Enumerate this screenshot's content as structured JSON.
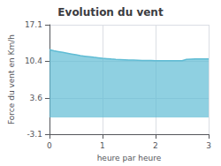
{
  "chart_data": {
    "type": "area",
    "title": "Evolution du vent",
    "xlabel": "heure par heure",
    "ylabel": "Force du vent en Km/h",
    "x": [
      0,
      0.083,
      0.167,
      0.25,
      0.333,
      0.417,
      0.5,
      0.583,
      0.667,
      0.75,
      0.833,
      0.917,
      1.0,
      1.083,
      1.167,
      1.25,
      1.333,
      1.417,
      1.5,
      1.583,
      1.667,
      1.75,
      1.833,
      1.917,
      2.0,
      2.083,
      2.167,
      2.25,
      2.333,
      2.417,
      2.5,
      2.583,
      2.667,
      2.75,
      2.833,
      2.917,
      3.0
    ],
    "values": [
      12.5,
      12.3,
      12.15,
      12.0,
      11.85,
      11.7,
      11.55,
      11.4,
      11.3,
      11.2,
      11.1,
      11.0,
      10.9,
      10.85,
      10.78,
      10.72,
      10.68,
      10.64,
      10.6,
      10.58,
      10.55,
      10.52,
      10.5,
      10.5,
      10.48,
      10.47,
      10.46,
      10.46,
      10.46,
      10.46,
      10.46,
      10.7,
      10.75,
      10.78,
      10.8,
      10.8,
      10.8
    ],
    "color": "#60bcd4",
    "xlim": [
      0,
      3
    ],
    "xticks": [
      0,
      1,
      2,
      3
    ],
    "ylim": [
      -3.1,
      17.1
    ],
    "yticks": [
      -3.1,
      3.6,
      10.4,
      17.1
    ],
    "grid": true
  }
}
